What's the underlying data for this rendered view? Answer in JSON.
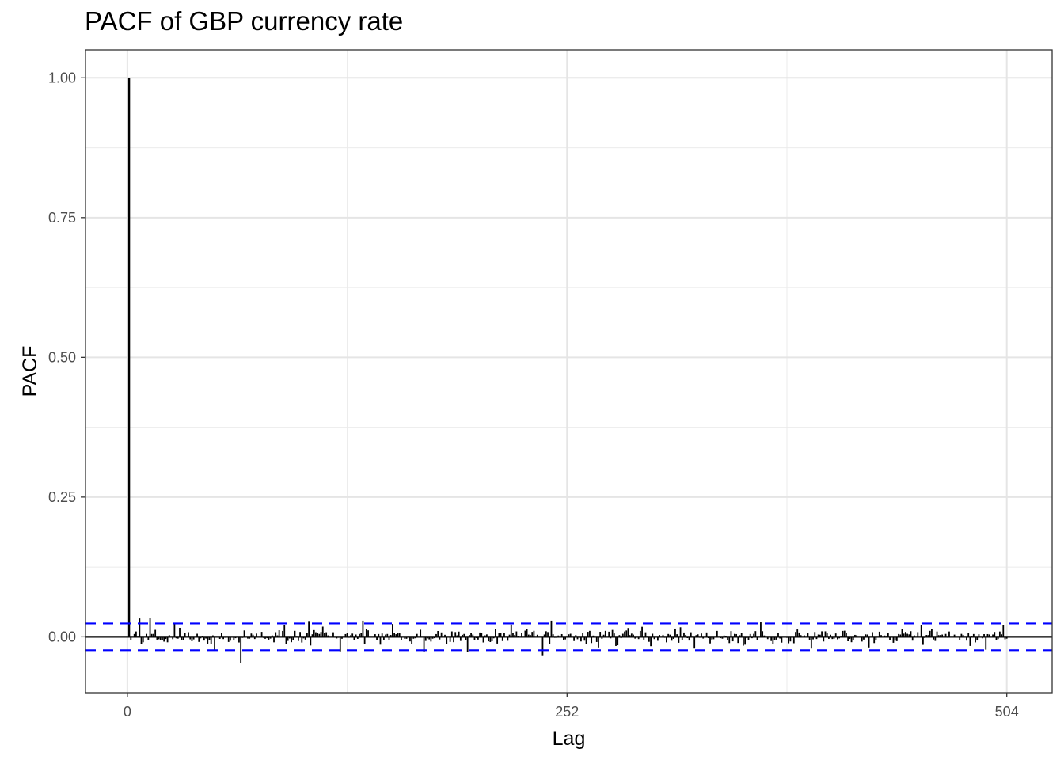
{
  "chart_data": {
    "type": "bar",
    "title": "PACF of GBP currency rate",
    "xlabel": "Lag",
    "ylabel": "PACF",
    "x_ticks": [
      0,
      252,
      504
    ],
    "y_ticks": [
      "0.00",
      "0.25",
      "0.50",
      "0.75",
      "1.00"
    ],
    "xlim": [
      -24,
      530
    ],
    "ylim": [
      -0.1,
      1.05
    ],
    "confidence_bounds": [
      -0.024,
      0.024
    ],
    "grid": true,
    "spikes": [
      {
        "lag": 1,
        "value": 1.0
      },
      {
        "lag": 7,
        "value": 0.033
      },
      {
        "lag": 13,
        "value": 0.034
      },
      {
        "lag": 27,
        "value": 0.025
      },
      {
        "lag": 50,
        "value": -0.025
      },
      {
        "lag": 65,
        "value": -0.047
      },
      {
        "lag": 90,
        "value": 0.021
      },
      {
        "lag": 104,
        "value": 0.027
      },
      {
        "lag": 122,
        "value": -0.026
      },
      {
        "lag": 135,
        "value": 0.029
      },
      {
        "lag": 152,
        "value": 0.023
      },
      {
        "lag": 170,
        "value": -0.027
      },
      {
        "lag": 195,
        "value": -0.027
      },
      {
        "lag": 220,
        "value": 0.022
      },
      {
        "lag": 238,
        "value": -0.033
      },
      {
        "lag": 243,
        "value": 0.029
      },
      {
        "lag": 270,
        "value": -0.019
      },
      {
        "lag": 295,
        "value": 0.018
      },
      {
        "lag": 325,
        "value": -0.021
      },
      {
        "lag": 363,
        "value": 0.026
      },
      {
        "lag": 392,
        "value": -0.021
      },
      {
        "lag": 425,
        "value": -0.019
      },
      {
        "lag": 455,
        "value": 0.021
      },
      {
        "lag": 492,
        "value": -0.023
      },
      {
        "lag": 502,
        "value": 0.021
      }
    ],
    "noise_seed": 17,
    "noise_amplitude": 0.013
  }
}
